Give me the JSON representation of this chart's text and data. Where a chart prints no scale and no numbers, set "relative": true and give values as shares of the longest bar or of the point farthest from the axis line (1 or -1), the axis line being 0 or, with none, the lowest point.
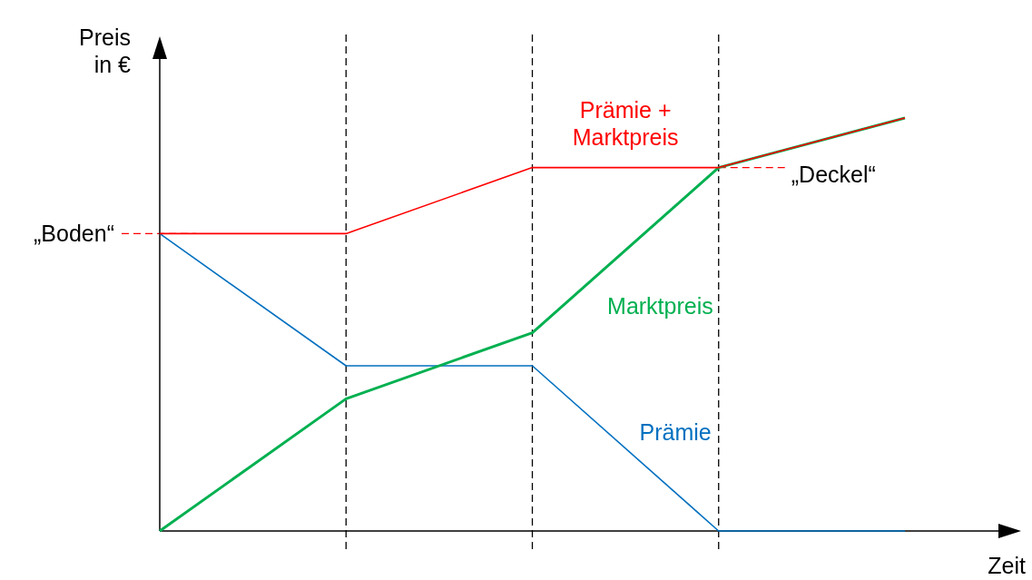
{
  "chart_data": {
    "type": "line",
    "relative": true,
    "grid": "x",
    "xlabel": "Zeit",
    "ylabel": "Preis in €",
    "categories": [
      null,
      null,
      null,
      null,
      null
    ],
    "series": [
      {
        "name": "Prämie + Marktpreis",
        "color": "#ff0000",
        "values": [
          0.72,
          0.72,
          0.88,
          0.88,
          1
        ]
      },
      {
        "name": "Marktpreis",
        "color": "#00b050",
        "values": [
          0,
          0.32,
          0.48,
          0.88,
          1
        ]
      },
      {
        "name": "Prämie",
        "color": "#0070c0",
        "values": [
          0.72,
          0.4,
          0.4,
          0,
          0
        ]
      }
    ],
    "ref_lines": [
      {
        "axis": "y",
        "value": 0.72,
        "label": "„Boden“",
        "color": "#ff0000",
        "line_style": "dashed"
      },
      {
        "axis": "y",
        "value": 0.88,
        "label": "„Deckel“",
        "color": "#ff0000",
        "line_style": "dashed"
      }
    ]
  }
}
